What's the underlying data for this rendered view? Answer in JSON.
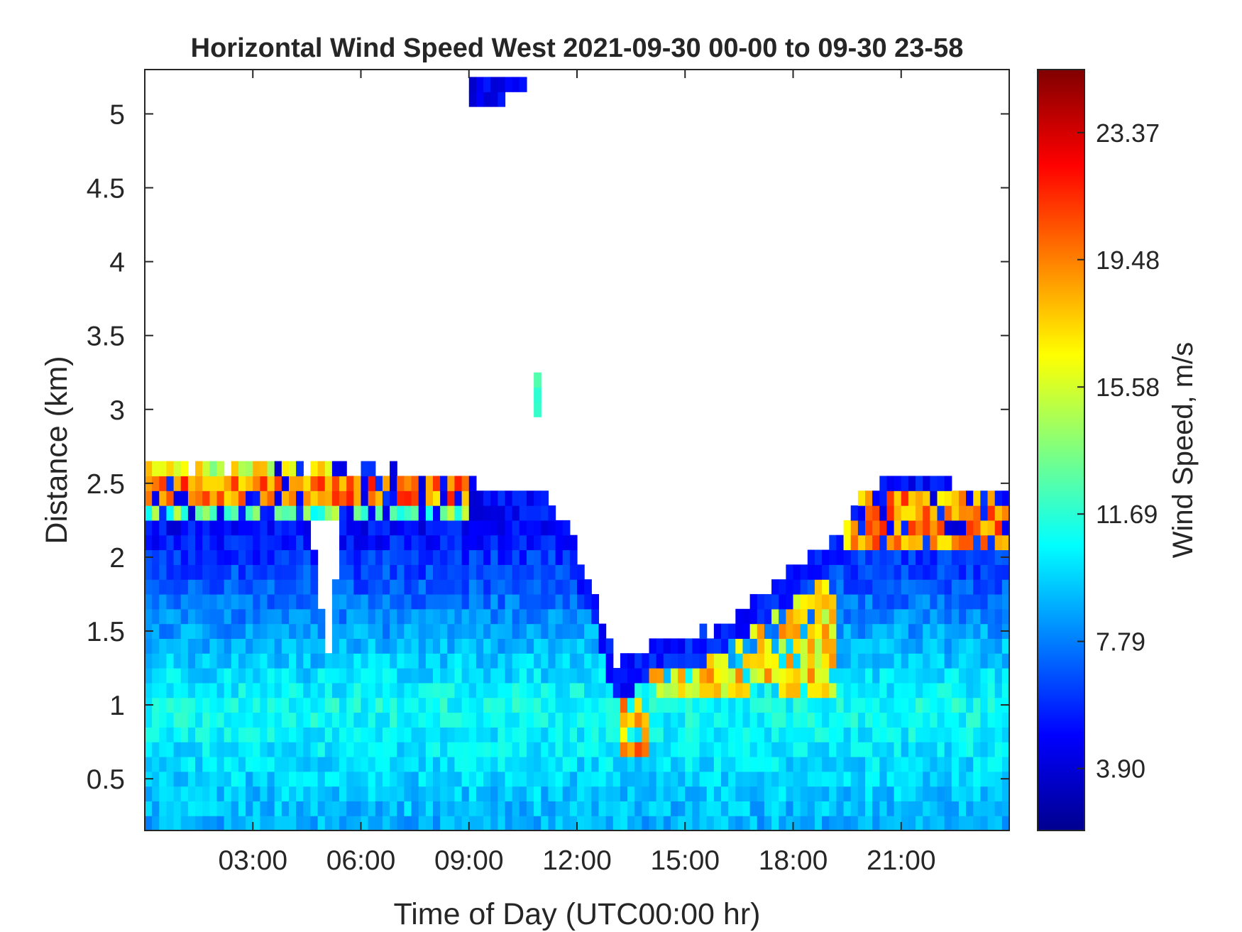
{
  "chart_data": {
    "type": "heatmap",
    "title": "Horizontal Wind Speed West 2021-09-30 00-00 to 09-30 23-58",
    "xlabel": "Time of Day (UTC00:00 hr)",
    "ylabel": "Distance (km)",
    "colorbar_label": "Wind Speed, m/s",
    "colormap": "jet",
    "xlim_hours": [
      0,
      24
    ],
    "ylim_km": [
      0.15,
      5.3
    ],
    "clim": [
      2.0,
      25.3
    ],
    "x_ticks": [
      {
        "value": 3,
        "label": "03:00"
      },
      {
        "value": 6,
        "label": "06:00"
      },
      {
        "value": 9,
        "label": "09:00"
      },
      {
        "value": 12,
        "label": "12:00"
      },
      {
        "value": 15,
        "label": "15:00"
      },
      {
        "value": 18,
        "label": "18:00"
      },
      {
        "value": 21,
        "label": "21:00"
      }
    ],
    "y_ticks": [
      {
        "value": 0.5,
        "label": "0.5"
      },
      {
        "value": 1,
        "label": "1"
      },
      {
        "value": 1.5,
        "label": "1.5"
      },
      {
        "value": 2,
        "label": "2"
      },
      {
        "value": 2.5,
        "label": "2.5"
      },
      {
        "value": 3,
        "label": "3"
      },
      {
        "value": 3.5,
        "label": "3.5"
      },
      {
        "value": 4,
        "label": "4"
      },
      {
        "value": 4.5,
        "label": "4.5"
      },
      {
        "value": 5,
        "label": "5"
      }
    ],
    "colorbar_ticks": [
      {
        "value": 3.9,
        "label": "3.90"
      },
      {
        "value": 7.79,
        "label": "7.79"
      },
      {
        "value": 11.69,
        "label": "11.69"
      },
      {
        "value": 15.58,
        "label": "15.58"
      },
      {
        "value": 19.48,
        "label": "19.48"
      },
      {
        "value": 23.37,
        "label": "23.37"
      }
    ],
    "time_step_hours": 0.2,
    "range_gate_km": 0.1,
    "data_top_profile_km": [
      [
        0,
        2.62
      ],
      [
        1.5,
        2.62
      ],
      [
        5.5,
        2.62
      ],
      [
        7.5,
        2.55
      ],
      [
        8.5,
        2.55
      ],
      [
        9.0,
        2.52
      ],
      [
        9.6,
        2.45
      ],
      [
        11.0,
        2.45
      ],
      [
        11.8,
        2.2
      ],
      [
        12.3,
        1.85
      ],
      [
        12.8,
        1.5
      ],
      [
        13.0,
        1.3
      ],
      [
        13.6,
        1.3
      ],
      [
        14.0,
        1.4
      ],
      [
        15.0,
        1.45
      ],
      [
        16.0,
        1.55
      ],
      [
        17.0,
        1.75
      ],
      [
        18.0,
        1.9
      ],
      [
        19.0,
        2.1
      ],
      [
        19.5,
        2.25
      ],
      [
        20.0,
        2.45
      ],
      [
        21.0,
        2.55
      ],
      [
        22.0,
        2.55
      ],
      [
        23.0,
        2.45
      ],
      [
        24.0,
        2.45
      ]
    ],
    "high_speed_features": [
      {
        "name": "low-level jet layer",
        "t_start": 0,
        "t_end": 9.0,
        "z_low": 2.35,
        "z_high": 2.55,
        "speed": 19.5
      },
      {
        "name": "upper band",
        "t_start": 0,
        "t_end": 6.0,
        "z_low": 2.55,
        "z_high": 2.62,
        "speed": 16.0
      },
      {
        "name": "lower band",
        "t_start": 0,
        "t_end": 9.0,
        "z_low": 2.25,
        "z_high": 2.35,
        "speed": 13.0
      },
      {
        "name": "midday patch",
        "t_start": 13.2,
        "t_end": 14.0,
        "z_low": 0.7,
        "z_high": 1.05,
        "speed": 19.0
      },
      {
        "name": "afternoon edge",
        "t_start": 14.0,
        "t_end": 19.2,
        "z_low": 1.1,
        "z_high": 1.9,
        "speed": 17.0
      },
      {
        "name": "evening layer",
        "t_start": 19.5,
        "t_end": 24.0,
        "z_low": 2.1,
        "z_high": 2.45,
        "speed": 19.0
      }
    ],
    "gap_region": {
      "t_start": 4.6,
      "t_end": 5.5,
      "z_low": 1.4,
      "z_high": 2.25
    },
    "isolated_returns": [
      {
        "t_start": 9.1,
        "t_end": 10.0,
        "z_low": 5.05,
        "z_high": 5.25,
        "speed": 4.5
      },
      {
        "t_start": 10.0,
        "t_end": 10.5,
        "z_low": 5.15,
        "z_high": 5.3,
        "speed": 5.0
      },
      {
        "t_start": 10.8,
        "t_end": 11.0,
        "z_low": 2.95,
        "z_high": 3.25,
        "speed": 12.5
      }
    ],
    "background_speed": {
      "near_surface": 8.5,
      "low_level_max": 11.0,
      "upper_layer": 5.0
    }
  }
}
